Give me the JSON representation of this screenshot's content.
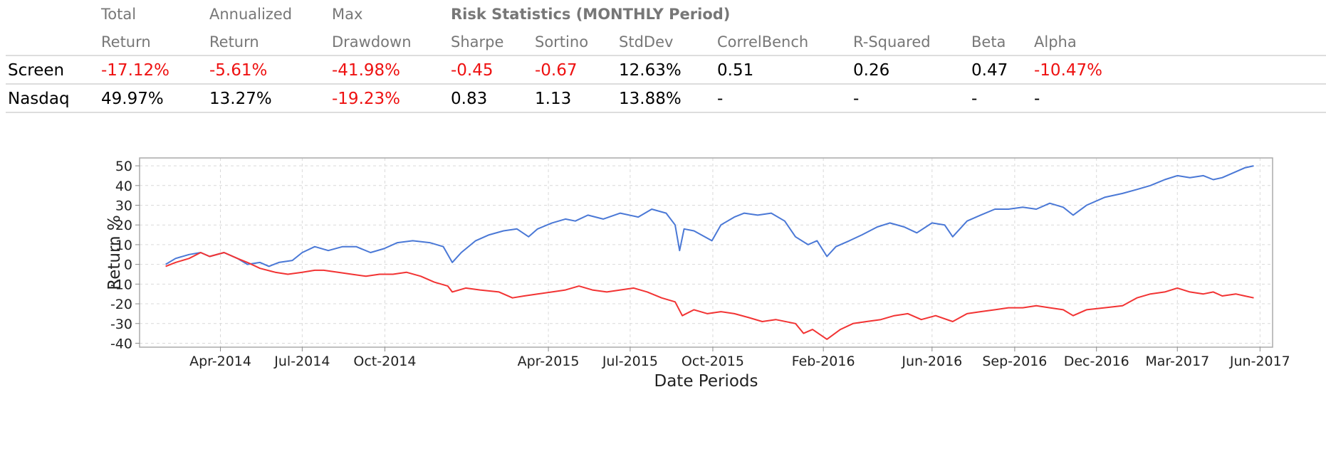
{
  "table": {
    "headers_row1": [
      "Total",
      "Annualized",
      "Max",
      "Risk Statistics (MONTHLY Period)"
    ],
    "headers_row2": [
      "Return",
      "Return",
      "Drawdown",
      "Sharpe",
      "Sortino",
      "StdDev",
      "CorrelBench",
      "R-Squared",
      "Beta",
      "Alpha"
    ],
    "rows": [
      {
        "name": "Screen",
        "cells": [
          {
            "text": "-17.12%",
            "negative": true
          },
          {
            "text": "-5.61%",
            "negative": true
          },
          {
            "text": "-41.98%",
            "negative": true
          },
          {
            "text": "-0.45",
            "negative": true
          },
          {
            "text": "-0.67",
            "negative": true
          },
          {
            "text": "12.63%",
            "negative": false
          },
          {
            "text": "0.51",
            "negative": false
          },
          {
            "text": "0.26",
            "negative": false
          },
          {
            "text": "0.47",
            "negative": false
          },
          {
            "text": "-10.47%",
            "negative": true
          }
        ]
      },
      {
        "name": "Nasdaq",
        "cells": [
          {
            "text": "49.97%",
            "negative": false
          },
          {
            "text": "13.27%",
            "negative": false
          },
          {
            "text": "-19.23%",
            "negative": true
          },
          {
            "text": "0.83",
            "negative": false
          },
          {
            "text": "1.13",
            "negative": false
          },
          {
            "text": "13.88%",
            "negative": false
          },
          {
            "text": "-",
            "negative": false
          },
          {
            "text": "-",
            "negative": false
          },
          {
            "text": "-",
            "negative": false
          },
          {
            "text": "-",
            "negative": false
          }
        ]
      }
    ],
    "negative_color": "#ee1111",
    "header_color": "#777777"
  },
  "chart_data": {
    "type": "line",
    "title": "",
    "xlabel": "Date Periods",
    "ylabel": "Return %",
    "ylim": [
      -42,
      54
    ],
    "yticks": [
      -40,
      -30,
      -20,
      -10,
      0,
      10,
      20,
      30,
      40,
      50
    ],
    "xlim": [
      "2014-01-01",
      "2017-06-15"
    ],
    "x_ticks": [
      {
        "date": "2014-04-01",
        "label": "Apr-2014"
      },
      {
        "date": "2014-07-01",
        "label": "Jul-2014"
      },
      {
        "date": "2014-10-01",
        "label": "Oct-2014"
      },
      {
        "date": "2015-04-01",
        "label": "Apr-2015"
      },
      {
        "date": "2015-07-01",
        "label": "Jul-2015"
      },
      {
        "date": "2015-10-01",
        "label": "Oct-2015"
      },
      {
        "date": "2016-02-01",
        "label": "Feb-2016"
      },
      {
        "date": "2016-06-01",
        "label": "Jun-2016"
      },
      {
        "date": "2016-09-01",
        "label": "Sep-2016"
      },
      {
        "date": "2016-12-01",
        "label": "Dec-2016"
      },
      {
        "date": "2017-03-01",
        "label": "Mar-2017"
      },
      {
        "date": "2017-06-01",
        "label": "Jun-2017"
      }
    ],
    "grid": true,
    "legend": "none",
    "series": [
      {
        "color": "#4a78d6",
        "points": [
          [
            "2014-01-30",
            0
          ],
          [
            "2014-02-10",
            3
          ],
          [
            "2014-02-25",
            5
          ],
          [
            "2014-03-10",
            6
          ],
          [
            "2014-03-20",
            4
          ],
          [
            "2014-04-05",
            6
          ],
          [
            "2014-04-20",
            3
          ],
          [
            "2014-05-01",
            0
          ],
          [
            "2014-05-15",
            1
          ],
          [
            "2014-05-25",
            -1
          ],
          [
            "2014-06-05",
            1
          ],
          [
            "2014-06-20",
            2
          ],
          [
            "2014-07-01",
            6
          ],
          [
            "2014-07-15",
            9
          ],
          [
            "2014-07-30",
            7
          ],
          [
            "2014-08-15",
            9
          ],
          [
            "2014-08-30",
            9
          ],
          [
            "2014-09-15",
            6
          ],
          [
            "2014-09-30",
            8
          ],
          [
            "2014-10-15",
            11
          ],
          [
            "2014-11-01",
            12
          ],
          [
            "2014-11-20",
            11
          ],
          [
            "2014-12-05",
            9
          ],
          [
            "2014-12-15",
            1
          ],
          [
            "2014-12-25",
            6
          ],
          [
            "2015-01-10",
            12
          ],
          [
            "2015-01-25",
            15
          ],
          [
            "2015-02-10",
            17
          ],
          [
            "2015-02-25",
            18
          ],
          [
            "2015-03-10",
            14
          ],
          [
            "2015-03-20",
            18
          ],
          [
            "2015-04-05",
            21
          ],
          [
            "2015-04-20",
            23
          ],
          [
            "2015-05-01",
            22
          ],
          [
            "2015-05-15",
            25
          ],
          [
            "2015-06-01",
            23
          ],
          [
            "2015-06-20",
            26
          ],
          [
            "2015-07-10",
            24
          ],
          [
            "2015-07-25",
            28
          ],
          [
            "2015-08-10",
            26
          ],
          [
            "2015-08-20",
            20
          ],
          [
            "2015-08-25",
            7
          ],
          [
            "2015-08-30",
            18
          ],
          [
            "2015-09-10",
            17
          ],
          [
            "2015-09-30",
            12
          ],
          [
            "2015-10-10",
            20
          ],
          [
            "2015-10-25",
            24
          ],
          [
            "2015-11-05",
            26
          ],
          [
            "2015-11-20",
            25
          ],
          [
            "2015-12-05",
            26
          ],
          [
            "2015-12-20",
            22
          ],
          [
            "2016-01-01",
            14
          ],
          [
            "2016-01-15",
            10
          ],
          [
            "2016-01-25",
            12
          ],
          [
            "2016-02-05",
            4
          ],
          [
            "2016-02-15",
            9
          ],
          [
            "2016-03-01",
            12
          ],
          [
            "2016-03-15",
            15
          ],
          [
            "2016-04-01",
            19
          ],
          [
            "2016-04-15",
            21
          ],
          [
            "2016-05-01",
            19
          ],
          [
            "2016-05-15",
            16
          ],
          [
            "2016-06-01",
            21
          ],
          [
            "2016-06-15",
            20
          ],
          [
            "2016-06-24",
            14
          ],
          [
            "2016-07-10",
            22
          ],
          [
            "2016-07-25",
            25
          ],
          [
            "2016-08-10",
            28
          ],
          [
            "2016-08-25",
            28
          ],
          [
            "2016-09-10",
            29
          ],
          [
            "2016-09-25",
            28
          ],
          [
            "2016-10-10",
            31
          ],
          [
            "2016-10-25",
            29
          ],
          [
            "2016-11-05",
            25
          ],
          [
            "2016-11-20",
            30
          ],
          [
            "2016-12-10",
            34
          ],
          [
            "2016-12-30",
            36
          ],
          [
            "2017-01-15",
            38
          ],
          [
            "2017-01-30",
            40
          ],
          [
            "2017-02-15",
            43
          ],
          [
            "2017-03-01",
            45
          ],
          [
            "2017-03-15",
            44
          ],
          [
            "2017-03-30",
            45
          ],
          [
            "2017-04-10",
            43
          ],
          [
            "2017-04-20",
            44
          ],
          [
            "2017-05-05",
            47
          ],
          [
            "2017-05-15",
            49
          ],
          [
            "2017-05-25",
            50
          ]
        ]
      },
      {
        "color": "#f23333",
        "points": [
          [
            "2014-01-30",
            -1
          ],
          [
            "2014-02-10",
            1
          ],
          [
            "2014-02-25",
            3
          ],
          [
            "2014-03-10",
            6
          ],
          [
            "2014-03-20",
            4
          ],
          [
            "2014-04-05",
            6
          ],
          [
            "2014-04-20",
            3
          ],
          [
            "2014-05-01",
            1
          ],
          [
            "2014-05-15",
            -2
          ],
          [
            "2014-06-01",
            -4
          ],
          [
            "2014-06-15",
            -5
          ],
          [
            "2014-07-01",
            -4
          ],
          [
            "2014-07-15",
            -3
          ],
          [
            "2014-07-25",
            -3
          ],
          [
            "2014-08-10",
            -4
          ],
          [
            "2014-08-25",
            -5
          ],
          [
            "2014-09-10",
            -6
          ],
          [
            "2014-09-25",
            -5
          ],
          [
            "2014-10-10",
            -5
          ],
          [
            "2014-10-25",
            -4
          ],
          [
            "2014-11-10",
            -6
          ],
          [
            "2014-11-25",
            -9
          ],
          [
            "2014-12-10",
            -11
          ],
          [
            "2014-12-15",
            -14
          ],
          [
            "2014-12-30",
            -12
          ],
          [
            "2015-01-15",
            -13
          ],
          [
            "2015-02-05",
            -14
          ],
          [
            "2015-02-20",
            -17
          ],
          [
            "2015-03-05",
            -16
          ],
          [
            "2015-03-20",
            -15
          ],
          [
            "2015-04-05",
            -14
          ],
          [
            "2015-04-20",
            -13
          ],
          [
            "2015-05-05",
            -11
          ],
          [
            "2015-05-20",
            -13
          ],
          [
            "2015-06-05",
            -14
          ],
          [
            "2015-06-20",
            -13
          ],
          [
            "2015-07-05",
            -12
          ],
          [
            "2015-07-20",
            -14
          ],
          [
            "2015-08-05",
            -17
          ],
          [
            "2015-08-20",
            -19
          ],
          [
            "2015-08-28",
            -26
          ],
          [
            "2015-09-10",
            -23
          ],
          [
            "2015-09-25",
            -25
          ],
          [
            "2015-10-10",
            -24
          ],
          [
            "2015-10-25",
            -25
          ],
          [
            "2015-11-10",
            -27
          ],
          [
            "2015-11-25",
            -29
          ],
          [
            "2015-12-10",
            -28
          ],
          [
            "2016-01-01",
            -30
          ],
          [
            "2016-01-10",
            -35
          ],
          [
            "2016-01-20",
            -33
          ],
          [
            "2016-02-05",
            -38
          ],
          [
            "2016-02-20",
            -33
          ],
          [
            "2016-03-05",
            -30
          ],
          [
            "2016-03-20",
            -29
          ],
          [
            "2016-04-05",
            -28
          ],
          [
            "2016-04-20",
            -26
          ],
          [
            "2016-05-05",
            -25
          ],
          [
            "2016-05-20",
            -28
          ],
          [
            "2016-06-05",
            -26
          ],
          [
            "2016-06-24",
            -29
          ],
          [
            "2016-07-10",
            -25
          ],
          [
            "2016-07-25",
            -24
          ],
          [
            "2016-08-10",
            -23
          ],
          [
            "2016-08-25",
            -22
          ],
          [
            "2016-09-10",
            -22
          ],
          [
            "2016-09-25",
            -21
          ],
          [
            "2016-10-10",
            -22
          ],
          [
            "2016-10-25",
            -23
          ],
          [
            "2016-11-05",
            -26
          ],
          [
            "2016-11-20",
            -23
          ],
          [
            "2016-12-10",
            -22
          ],
          [
            "2016-12-30",
            -21
          ],
          [
            "2017-01-15",
            -17
          ],
          [
            "2017-01-30",
            -15
          ],
          [
            "2017-02-15",
            -14
          ],
          [
            "2017-03-01",
            -12
          ],
          [
            "2017-03-15",
            -14
          ],
          [
            "2017-03-30",
            -15
          ],
          [
            "2017-04-10",
            -14
          ],
          [
            "2017-04-20",
            -16
          ],
          [
            "2017-05-05",
            -15
          ],
          [
            "2017-05-15",
            -16
          ],
          [
            "2017-05-25",
            -17
          ]
        ]
      }
    ]
  }
}
